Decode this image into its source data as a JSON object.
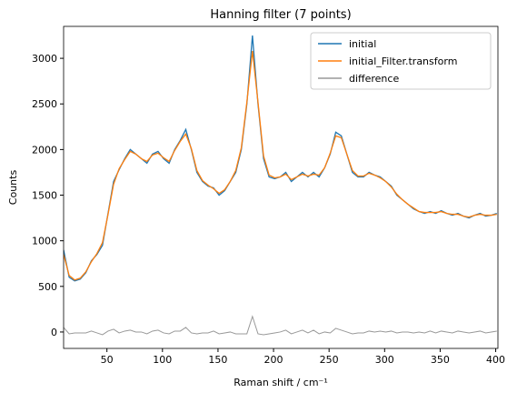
{
  "chart_data": {
    "type": "line",
    "title": "Hanning filter (7 points)",
    "xlabel": "Raman shift / cm⁻¹",
    "ylabel": "Counts",
    "x": [
      11,
      16,
      21,
      26,
      31,
      36,
      41,
      46,
      51,
      56,
      61,
      66,
      71,
      76,
      81,
      86,
      91,
      96,
      101,
      106,
      111,
      116,
      121,
      126,
      131,
      136,
      141,
      146,
      151,
      156,
      161,
      166,
      171,
      176,
      181,
      186,
      191,
      196,
      201,
      206,
      211,
      216,
      221,
      226,
      231,
      236,
      241,
      246,
      251,
      256,
      261,
      266,
      271,
      276,
      281,
      286,
      291,
      296,
      301,
      306,
      311,
      316,
      321,
      326,
      331,
      336,
      341,
      346,
      351,
      356,
      361,
      366,
      371,
      376,
      381,
      386,
      391,
      396,
      401
    ],
    "series": [
      {
        "name": "initial",
        "color": "#1f77b4",
        "values": [
          900,
          600,
          560,
          580,
          650,
          780,
          850,
          950,
          1300,
          1650,
          1780,
          1900,
          2000,
          1950,
          1900,
          1850,
          1950,
          1980,
          1900,
          1850,
          2000,
          2100,
          2220,
          2000,
          1750,
          1650,
          1600,
          1580,
          1500,
          1550,
          1650,
          1750,
          2000,
          2500,
          3250,
          2500,
          1900,
          1700,
          1680,
          1700,
          1750,
          1650,
          1700,
          1750,
          1700,
          1750,
          1700,
          1800,
          1950,
          2190,
          2150,
          1950,
          1750,
          1700,
          1700,
          1750,
          1720,
          1700,
          1650,
          1600,
          1500,
          1450,
          1400,
          1350,
          1320,
          1300,
          1320,
          1300,
          1330,
          1300,
          1280,
          1300,
          1270,
          1250,
          1280,
          1300,
          1270,
          1280,
          1300
        ]
      },
      {
        "name": "initial_Filter.transform",
        "color": "#ff7f0e",
        "values": [
          850,
          620,
          570,
          590,
          660,
          770,
          860,
          980,
          1290,
          1620,
          1790,
          1890,
          1980,
          1950,
          1900,
          1870,
          1940,
          1960,
          1910,
          1870,
          1990,
          2090,
          2170,
          2010,
          1770,
          1660,
          1610,
          1570,
          1520,
          1560,
          1650,
          1770,
          2020,
          2520,
          3080,
          2520,
          1930,
          1720,
          1690,
          1700,
          1730,
          1670,
          1700,
          1730,
          1710,
          1730,
          1720,
          1800,
          1960,
          2150,
          2130,
          1950,
          1770,
          1710,
          1710,
          1740,
          1720,
          1690,
          1650,
          1590,
          1510,
          1450,
          1400,
          1360,
          1320,
          1310,
          1310,
          1310,
          1320,
          1300,
          1290,
          1290,
          1270,
          1260,
          1280,
          1290,
          1280,
          1280,
          1290
        ]
      },
      {
        "name": "difference",
        "color": "#999999",
        "values": [
          50,
          -20,
          -10,
          -10,
          -10,
          10,
          -10,
          -30,
          10,
          30,
          -10,
          10,
          20,
          0,
          0,
          -20,
          10,
          20,
          -10,
          -20,
          10,
          10,
          50,
          -10,
          -20,
          -10,
          -10,
          10,
          -20,
          -10,
          0,
          -20,
          -20,
          -20,
          170,
          -20,
          -30,
          -20,
          -10,
          0,
          20,
          -20,
          0,
          20,
          -10,
          20,
          -20,
          0,
          -10,
          40,
          20,
          0,
          -20,
          -10,
          -10,
          10,
          0,
          10,
          0,
          10,
          -10,
          0,
          0,
          -10,
          0,
          -10,
          10,
          -10,
          10,
          0,
          -10,
          10,
          0,
          -10,
          0,
          10,
          -10,
          0,
          10
        ]
      }
    ],
    "xlim": [
      11,
      402
    ],
    "xticks": [
      50,
      100,
      150,
      200,
      250,
      300,
      350,
      400
    ],
    "ylim": [
      -180,
      3350
    ],
    "yticks": [
      0,
      500,
      1000,
      1500,
      2000,
      2500,
      3000
    ],
    "legend": "upper right"
  }
}
